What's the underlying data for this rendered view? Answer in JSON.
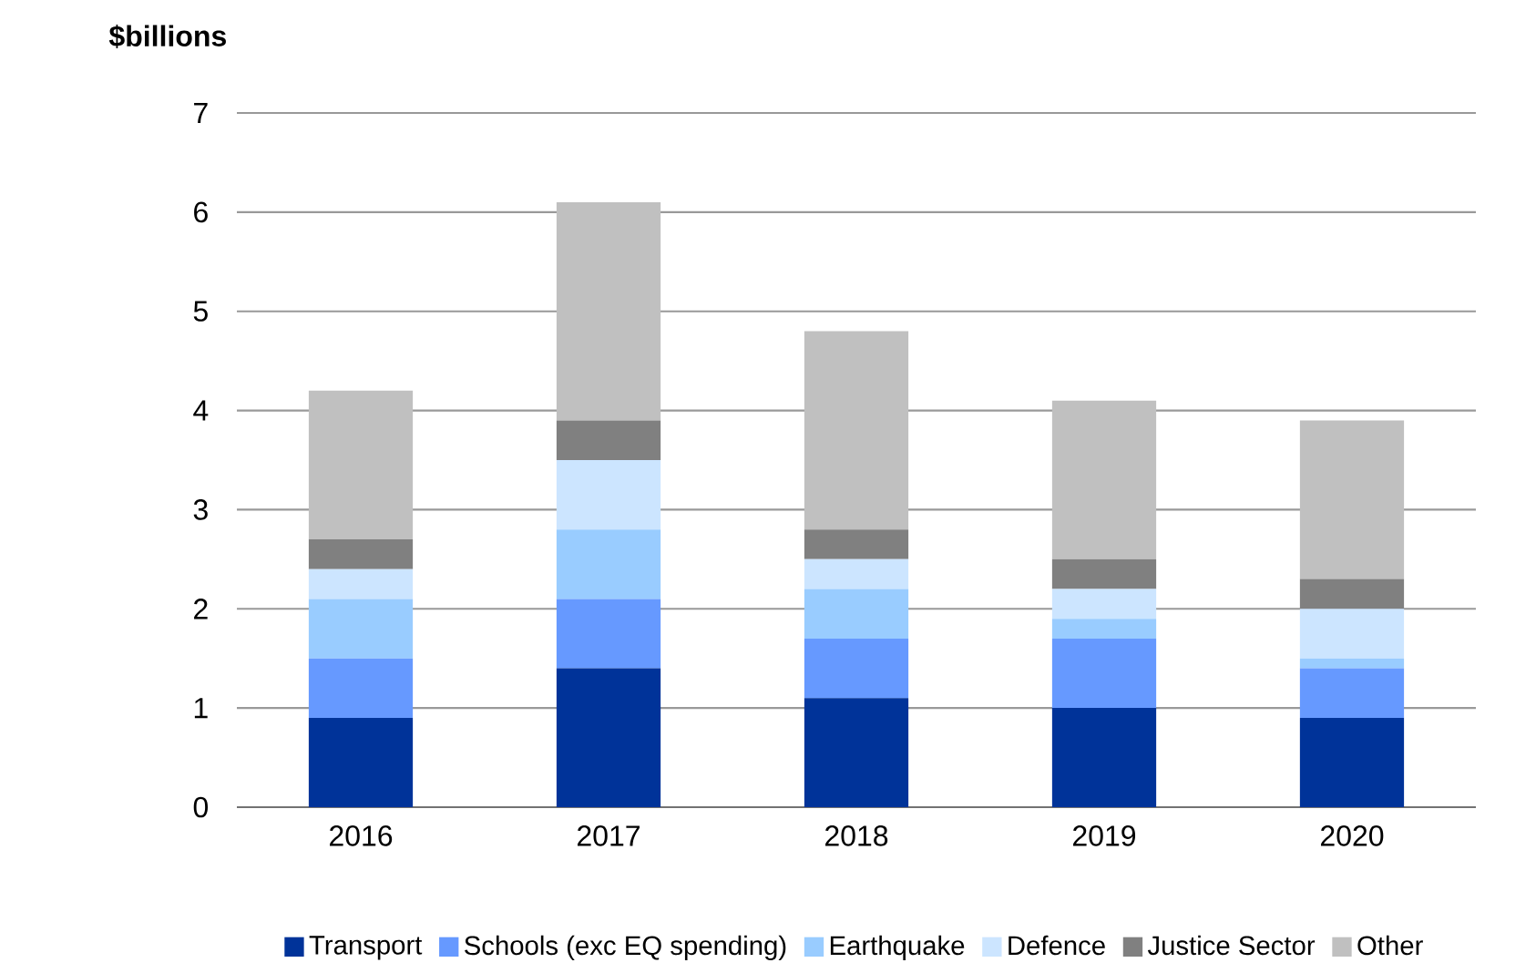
{
  "chart_data": {
    "type": "bar",
    "ylabel": "$billions",
    "stacked": true,
    "categories": [
      "2016",
      "2017",
      "2018",
      "2019",
      "2020"
    ],
    "series": [
      {
        "name": "Transport",
        "color": "#003399",
        "values": [
          0.9,
          1.4,
          1.1,
          1.0,
          0.9
        ]
      },
      {
        "name": "Schools (exc EQ spending)",
        "color": "#6699ff",
        "values": [
          0.6,
          0.7,
          0.6,
          0.7,
          0.5
        ]
      },
      {
        "name": "Earthquake",
        "color": "#99ccff",
        "values": [
          0.6,
          0.7,
          0.5,
          0.2,
          0.1
        ]
      },
      {
        "name": "Defence",
        "color": "#cce5ff",
        "values": [
          0.3,
          0.7,
          0.3,
          0.3,
          0.5
        ]
      },
      {
        "name": "Justice Sector",
        "color": "#808080",
        "values": [
          0.3,
          0.4,
          0.3,
          0.3,
          0.3
        ]
      },
      {
        "name": "Other",
        "color": "#c0c0c0",
        "values": [
          1.5,
          2.2,
          2.0,
          1.6,
          1.6
        ]
      }
    ],
    "ylim": [
      0,
      7
    ],
    "yticks": [
      0,
      1,
      2,
      3,
      4,
      5,
      6,
      7
    ],
    "grid": "y",
    "legend": "bottom"
  }
}
